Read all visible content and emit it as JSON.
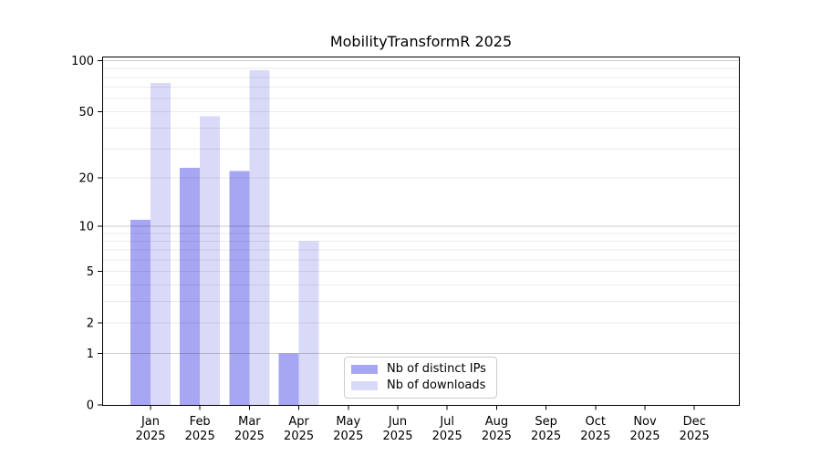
{
  "chart_data": {
    "type": "bar",
    "title": "MobilityTransformR 2025",
    "categories": [
      {
        "month": "Jan",
        "year": "2025"
      },
      {
        "month": "Feb",
        "year": "2025"
      },
      {
        "month": "Mar",
        "year": "2025"
      },
      {
        "month": "Apr",
        "year": "2025"
      },
      {
        "month": "May",
        "year": "2025"
      },
      {
        "month": "Jun",
        "year": "2025"
      },
      {
        "month": "Jul",
        "year": "2025"
      },
      {
        "month": "Aug",
        "year": "2025"
      },
      {
        "month": "Sep",
        "year": "2025"
      },
      {
        "month": "Oct",
        "year": "2025"
      },
      {
        "month": "Nov",
        "year": "2025"
      },
      {
        "month": "Dec",
        "year": "2025"
      }
    ],
    "series": [
      {
        "name": "Nb of distinct IPs",
        "color": "#a6a6f2",
        "values": [
          11,
          23,
          22,
          1,
          0,
          0,
          0,
          0,
          0,
          0,
          0,
          0
        ]
      },
      {
        "name": "Nb of downloads",
        "color": "#d9d9f8",
        "values": [
          74,
          47,
          88,
          8,
          0,
          0,
          0,
          0,
          0,
          0,
          0,
          0
        ]
      }
    ],
    "y_scale": "log1p",
    "ylim": [
      0,
      106
    ],
    "y_tick_labels": [
      "0",
      "1",
      "2",
      "5",
      "10",
      "20",
      "50",
      "100"
    ],
    "y_tick_values": [
      0,
      1,
      2,
      5,
      10,
      20,
      50,
      100
    ],
    "y_major_gridlines": [
      1,
      10,
      100
    ],
    "y_minor_gridlines": [
      2,
      3,
      4,
      5,
      6,
      7,
      8,
      9,
      20,
      30,
      40,
      50,
      60,
      70,
      80,
      90
    ],
    "grid": true,
    "legend_position": "lower center",
    "axis_color": "#000000",
    "background_color": "#ffffff"
  }
}
